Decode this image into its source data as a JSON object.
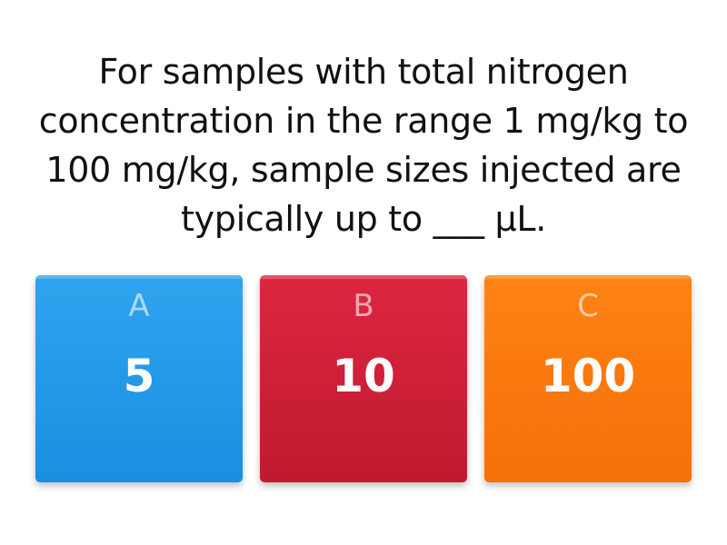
{
  "question": "For samples with total nitrogen concentration in the range 1 mg/kg to 100 mg/kg, sample sizes injected are typically up to ___ μL.",
  "options": [
    {
      "letter": "A",
      "value": "5",
      "color": "#2a9de8"
    },
    {
      "letter": "B",
      "value": "10",
      "color": "#d4213a"
    },
    {
      "letter": "C",
      "value": "100",
      "color": "#fd7b0e"
    }
  ]
}
